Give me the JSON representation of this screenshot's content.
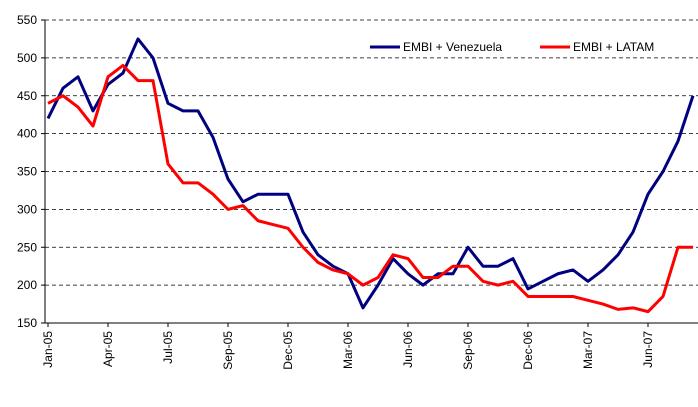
{
  "chart_data": {
    "type": "line",
    "categories": [
      "Jan-05",
      null,
      null,
      null,
      "Apr-05",
      null,
      null,
      null,
      "Jul-05",
      null,
      null,
      null,
      "Sep-05",
      null,
      null,
      null,
      "Dec-05",
      null,
      null,
      null,
      "Mar-06",
      null,
      null,
      null,
      "Jun-06",
      null,
      null,
      null,
      "Sep-06",
      null,
      null,
      null,
      "Dec-06",
      null,
      null,
      null,
      "Mar-07",
      null,
      null,
      null,
      "Jun-07",
      null,
      null,
      null
    ],
    "series": [
      {
        "name": "EMBI + Venezuela",
        "color": "#000080",
        "values": [
          420,
          460,
          475,
          430,
          465,
          480,
          525,
          500,
          440,
          430,
          430,
          395,
          340,
          310,
          320,
          320,
          320,
          270,
          240,
          225,
          215,
          170,
          200,
          235,
          215,
          200,
          215,
          215,
          250,
          225,
          225,
          235,
          195,
          205,
          215,
          220,
          205,
          220,
          240,
          270,
          320,
          350,
          390,
          450
        ]
      },
      {
        "name": "EMBI + LATAM",
        "color": "#ff0000",
        "values": [
          440,
          450,
          435,
          410,
          475,
          490,
          470,
          470,
          360,
          335,
          335,
          320,
          300,
          305,
          285,
          280,
          275,
          250,
          230,
          220,
          215,
          200,
          210,
          240,
          235,
          210,
          210,
          225,
          225,
          205,
          200,
          205,
          185,
          185,
          185,
          185,
          180,
          175,
          168,
          170,
          165,
          185,
          250,
          250
        ]
      }
    ],
    "ylim": [
      150,
      550
    ],
    "yticks": [
      150,
      200,
      250,
      300,
      350,
      400,
      450,
      500,
      550
    ],
    "grid": true,
    "legend": "upper right"
  }
}
